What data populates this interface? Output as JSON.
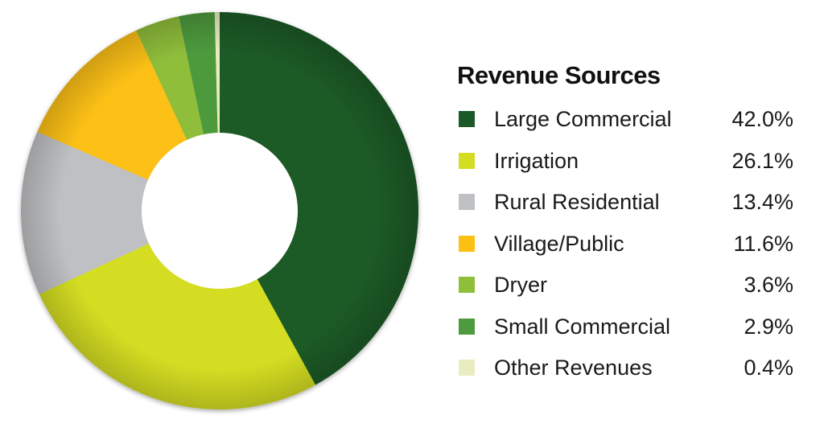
{
  "chart_data": {
    "type": "pie",
    "variant": "donut",
    "title": "Revenue Sources",
    "legend_position": "right",
    "slices": [
      {
        "label": "Large Commercial",
        "value": 42.0,
        "display": "42.0%",
        "color": "#1b5a28"
      },
      {
        "label": "Irrigation",
        "value": 26.1,
        "display": "26.1%",
        "color": "#d4dd22"
      },
      {
        "label": "Rural Residential",
        "value": 13.4,
        "display": "13.4%",
        "color": "#bfc0c3"
      },
      {
        "label": "Village/Public",
        "value": 11.6,
        "display": "11.6%",
        "color": "#fcc015"
      },
      {
        "label": "Dryer",
        "value": 3.6,
        "display": "3.6%",
        "color": "#8fbe3a"
      },
      {
        "label": "Small Commercial",
        "value": 2.9,
        "display": "2.9%",
        "color": "#4e9a3e"
      },
      {
        "label": "Other Revenues",
        "value": 0.4,
        "display": "0.4%",
        "color": "#e8ecc0"
      }
    ]
  }
}
